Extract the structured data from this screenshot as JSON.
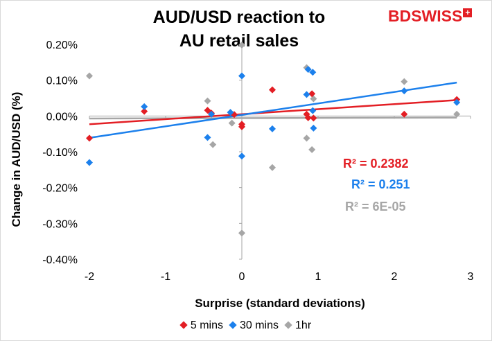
{
  "logo": {
    "text": "BDSWISS",
    "plus": "+"
  },
  "chart_data": {
    "type": "scatter",
    "title_lines": [
      "AUD/USD reaction to",
      "AU retail sales"
    ],
    "xlabel": "Surprise (standard deviations)",
    "ylabel": "Change in AUD/USD (%)",
    "xlim": [
      -2,
      3
    ],
    "ylim": [
      -0.4,
      0.2
    ],
    "x_ticks": [
      "-2",
      "-1",
      "0",
      "1",
      "2",
      "3"
    ],
    "y_ticks": [
      "0.20%",
      "0.10%",
      "0.00%",
      "-0.10%",
      "-0.20%",
      "-0.30%",
      "-0.40%"
    ],
    "legend_position": "bottom",
    "series": [
      {
        "name": "5 mins",
        "color": "#e31e24",
        "points": [
          [
            -2.0,
            -0.062
          ],
          [
            -1.28,
            0.013
          ],
          [
            -0.45,
            0.016
          ],
          [
            -0.4,
            0.008
          ],
          [
            -0.1,
            0.004
          ],
          [
            0.0,
            -0.023
          ],
          [
            0.0,
            -0.03
          ],
          [
            0.4,
            0.073
          ],
          [
            0.85,
            0.005
          ],
          [
            0.87,
            -0.005
          ],
          [
            0.92,
            0.062
          ],
          [
            0.94,
            -0.006
          ],
          [
            2.13,
            0.005
          ],
          [
            2.82,
            0.046
          ]
        ],
        "trend": {
          "slope": 0.014,
          "intercept": 0.005,
          "r2_text": "R² = 0.2382"
        }
      },
      {
        "name": "30 mins",
        "color": "#1c80ec",
        "points": [
          [
            -2.0,
            -0.13
          ],
          [
            -1.28,
            0.026
          ],
          [
            -0.45,
            -0.06
          ],
          [
            -0.4,
            0.005
          ],
          [
            -0.15,
            0.01
          ],
          [
            0.0,
            0.112
          ],
          [
            0.0,
            -0.112
          ],
          [
            0.4,
            -0.036
          ],
          [
            0.85,
            0.06
          ],
          [
            0.87,
            0.13
          ],
          [
            0.93,
            0.122
          ],
          [
            0.93,
            0.015
          ],
          [
            0.94,
            -0.034
          ],
          [
            2.13,
            0.07
          ],
          [
            2.82,
            0.038
          ]
        ],
        "trend": {
          "slope": 0.032,
          "intercept": 0.003,
          "r2_text": "R² = 0.251"
        }
      },
      {
        "name": "1hr",
        "color": "#a6a6a6",
        "points": [
          [
            -2.0,
            0.112
          ],
          [
            -0.45,
            0.042
          ],
          [
            -0.38,
            -0.08
          ],
          [
            -0.13,
            -0.02
          ],
          [
            0.0,
            0.198
          ],
          [
            0.0,
            -0.327
          ],
          [
            0.4,
            -0.144
          ],
          [
            0.85,
            0.135
          ],
          [
            0.85,
            -0.062
          ],
          [
            0.92,
            -0.094
          ],
          [
            0.94,
            0.048
          ],
          [
            2.13,
            0.096
          ],
          [
            2.82,
            0.005
          ]
        ],
        "trend": {
          "slope": 0.0005,
          "intercept": -0.006,
          "r2_text": "R² = 6E-05"
        }
      }
    ]
  }
}
